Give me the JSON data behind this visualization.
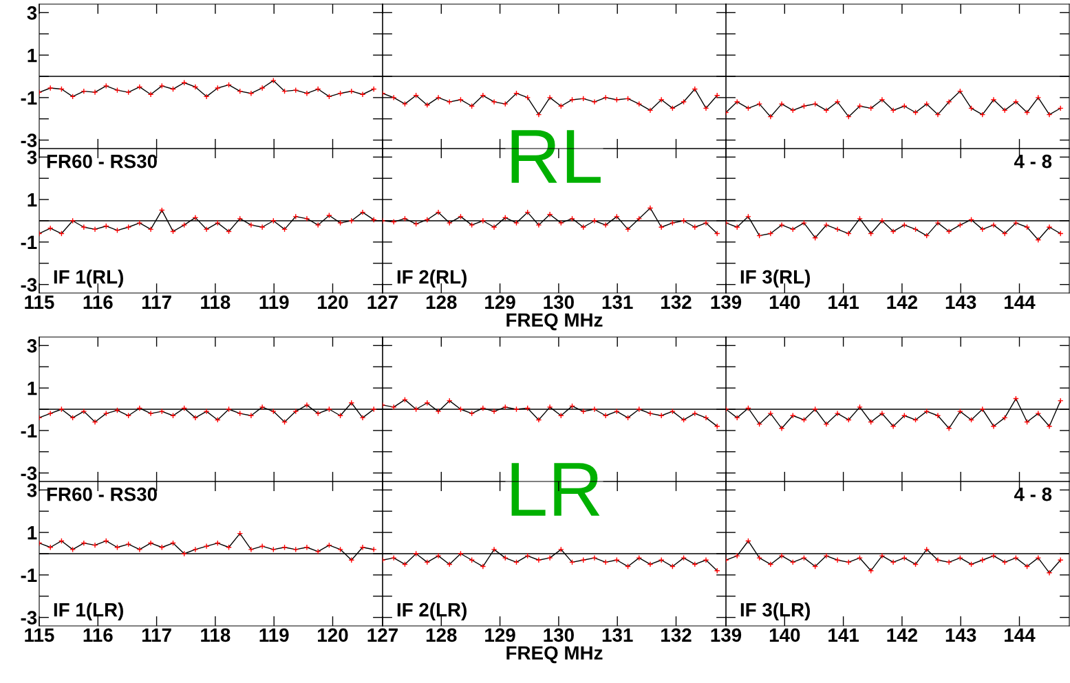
{
  "chart_data": [
    {
      "type": "line",
      "x": [
        115,
        115.19,
        115.38,
        115.57,
        115.76,
        115.95,
        116.14,
        116.33,
        116.52,
        116.71,
        116.9,
        117.09,
        117.28,
        117.47,
        117.66,
        117.85,
        118.04,
        118.23,
        118.42,
        118.61,
        118.8,
        118.99,
        119.18,
        119.37,
        119.56,
        119.75,
        119.94,
        120.13,
        120.32,
        120.51,
        120.7
      ],
      "series": [
        {
          "type": "line",
          "color": "#000000",
          "marker": "none",
          "values": [
            -0.75,
            -0.55,
            -0.6,
            -0.95,
            -0.7,
            -0.75,
            -0.45,
            -0.65,
            -0.75,
            -0.5,
            -0.85,
            -0.45,
            -0.6,
            -0.3,
            -0.5,
            -0.95,
            -0.55,
            -0.4,
            -0.7,
            -0.8,
            -0.55,
            -0.2,
            -0.7,
            -0.65,
            -0.8,
            -0.6,
            -0.95,
            -0.8,
            -0.7,
            -0.85,
            -0.6
          ]
        },
        {
          "type": "scatter",
          "color": "#ff0000",
          "marker": "cross",
          "values": [
            -0.75,
            -0.55,
            -0.6,
            -0.95,
            -0.7,
            -0.75,
            -0.45,
            -0.65,
            -0.75,
            -0.5,
            -0.85,
            -0.45,
            -0.6,
            -0.3,
            -0.5,
            -0.95,
            -0.55,
            -0.4,
            -0.7,
            -0.8,
            -0.55,
            -0.2,
            -0.7,
            -0.65,
            -0.8,
            -0.6,
            -0.95,
            -0.8,
            -0.7,
            -0.85,
            -0.6
          ]
        }
      ],
      "xlim": [
        115,
        120.85
      ],
      "xticks": [
        115,
        116,
        117,
        118,
        119,
        120
      ],
      "ylim": [
        -3.4,
        3.4
      ],
      "yticks": [
        -3,
        {
          "value": -2,
          "label": null
        },
        -1,
        {
          "value": 0,
          "label": null
        },
        1,
        {
          "value": 2,
          "label": null
        },
        3
      ],
      "ref_lines": [
        {
          "axis": "y",
          "value": 0,
          "color": "#000000"
        }
      ],
      "tick_labels": "y"
    },
    {
      "type": "line",
      "x": [
        127,
        127.19,
        127.38,
        127.57,
        127.76,
        127.95,
        128.14,
        128.33,
        128.52,
        128.71,
        128.9,
        129.09,
        129.28,
        129.47,
        129.66,
        129.85,
        130.04,
        130.23,
        130.42,
        130.61,
        130.8,
        130.99,
        131.18,
        131.37,
        131.56,
        131.75,
        131.94,
        132.13,
        132.32,
        132.51,
        132.7
      ],
      "series": [
        {
          "type": "line",
          "color": "#000000",
          "marker": "none",
          "values": [
            -0.8,
            -1.0,
            -1.3,
            -0.9,
            -1.35,
            -1.0,
            -1.2,
            -1.1,
            -1.4,
            -0.9,
            -1.2,
            -1.3,
            -0.8,
            -1.0,
            -1.8,
            -1.0,
            -1.4,
            -1.1,
            -1.05,
            -1.2,
            -1.0,
            -1.1,
            -1.05,
            -1.3,
            -1.6,
            -1.1,
            -1.5,
            -1.2,
            -0.6,
            -1.5,
            -0.9
          ]
        },
        {
          "type": "scatter",
          "color": "#ff0000",
          "marker": "cross",
          "values": [
            -0.8,
            -1.0,
            -1.3,
            -0.9,
            -1.35,
            -1.0,
            -1.2,
            -1.1,
            -1.4,
            -0.9,
            -1.2,
            -1.3,
            -0.8,
            -1.0,
            -1.8,
            -1.0,
            -1.4,
            -1.1,
            -1.05,
            -1.2,
            -1.0,
            -1.1,
            -1.05,
            -1.3,
            -1.6,
            -1.1,
            -1.5,
            -1.2,
            -0.6,
            -1.5,
            -0.9
          ]
        }
      ],
      "xlim": [
        127,
        132.85
      ],
      "xticks": [
        127,
        128,
        129,
        130,
        131,
        132
      ],
      "ylim": [
        -3.4,
        3.4
      ],
      "yticks": [
        -3,
        {
          "value": -2,
          "label": null
        },
        -1,
        {
          "value": 0,
          "label": null
        },
        1,
        {
          "value": 2,
          "label": null
        },
        3
      ],
      "ref_lines": [
        {
          "axis": "y",
          "value": 0,
          "color": "#000000"
        }
      ],
      "tick_labels": false,
      "annotations": [
        "RL"
      ]
    },
    {
      "type": "line",
      "x": [
        139,
        139.19,
        139.38,
        139.57,
        139.76,
        139.95,
        140.14,
        140.33,
        140.52,
        140.71,
        140.9,
        141.09,
        141.28,
        141.47,
        141.66,
        141.85,
        142.04,
        142.23,
        142.42,
        142.61,
        142.8,
        142.99,
        143.18,
        143.37,
        143.56,
        143.75,
        143.94,
        144.13,
        144.32,
        144.51,
        144.7
      ],
      "series": [
        {
          "type": "line",
          "color": "#000000",
          "marker": "none",
          "values": [
            -1.7,
            -1.2,
            -1.5,
            -1.3,
            -1.9,
            -1.3,
            -1.6,
            -1.4,
            -1.3,
            -1.6,
            -1.2,
            -1.9,
            -1.4,
            -1.5,
            -1.1,
            -1.6,
            -1.4,
            -1.7,
            -1.3,
            -1.8,
            -1.2,
            -0.7,
            -1.5,
            -1.8,
            -1.1,
            -1.6,
            -1.2,
            -1.7,
            -1.0,
            -1.8,
            -1.5
          ]
        },
        {
          "type": "scatter",
          "color": "#ff0000",
          "marker": "cross",
          "values": [
            -1.7,
            -1.2,
            -1.5,
            -1.3,
            -1.9,
            -1.3,
            -1.6,
            -1.4,
            -1.3,
            -1.6,
            -1.2,
            -1.9,
            -1.4,
            -1.5,
            -1.1,
            -1.6,
            -1.4,
            -1.7,
            -1.3,
            -1.8,
            -1.2,
            -0.7,
            -1.5,
            -1.8,
            -1.1,
            -1.6,
            -1.2,
            -1.7,
            -1.0,
            -1.8,
            -1.5
          ]
        }
      ],
      "xlim": [
        139,
        144.85
      ],
      "xticks": [
        139,
        140,
        141,
        142,
        143,
        144
      ],
      "ylim": [
        -3.4,
        3.4
      ],
      "yticks": [
        -3,
        {
          "value": -2,
          "label": null
        },
        -1,
        {
          "value": 0,
          "label": null
        },
        1,
        {
          "value": 2,
          "label": null
        },
        3
      ],
      "ref_lines": [
        {
          "axis": "y",
          "value": 0,
          "color": "#000000"
        }
      ],
      "tick_labels": false
    },
    {
      "type": "line",
      "x": [
        115,
        115.19,
        115.38,
        115.57,
        115.76,
        115.95,
        116.14,
        116.33,
        116.52,
        116.71,
        116.9,
        117.09,
        117.28,
        117.47,
        117.66,
        117.85,
        118.04,
        118.23,
        118.42,
        118.61,
        118.8,
        118.99,
        119.18,
        119.37,
        119.56,
        119.75,
        119.94,
        120.13,
        120.32,
        120.51,
        120.7
      ],
      "series": [
        {
          "type": "line",
          "color": "#000000",
          "marker": "none",
          "values": [
            -0.6,
            -0.35,
            -0.6,
            0.0,
            -0.3,
            -0.4,
            -0.25,
            -0.45,
            -0.3,
            -0.1,
            -0.4,
            0.5,
            -0.5,
            -0.2,
            0.15,
            -0.4,
            -0.1,
            -0.5,
            0.1,
            -0.2,
            -0.3,
            0.0,
            -0.4,
            0.2,
            0.1,
            -0.2,
            0.25,
            -0.1,
            0.0,
            0.4,
            0.05
          ]
        },
        {
          "type": "scatter",
          "color": "#ff0000",
          "marker": "cross",
          "values": [
            -0.6,
            -0.35,
            -0.6,
            0.0,
            -0.3,
            -0.4,
            -0.25,
            -0.45,
            -0.3,
            -0.1,
            -0.4,
            0.5,
            -0.5,
            -0.2,
            0.15,
            -0.4,
            -0.1,
            -0.5,
            0.1,
            -0.2,
            -0.3,
            0.0,
            -0.4,
            0.2,
            0.1,
            -0.2,
            0.25,
            -0.1,
            0.0,
            0.4,
            0.05
          ]
        }
      ],
      "xlim": [
        115,
        120.85
      ],
      "xticks": [
        115,
        116,
        117,
        118,
        119,
        120
      ],
      "ylim": [
        -3.4,
        3.4
      ],
      "yticks": [
        -3,
        {
          "value": -2,
          "label": null
        },
        -1,
        {
          "value": 0,
          "label": null
        },
        1,
        {
          "value": 2,
          "label": null
        },
        3
      ],
      "ref_lines": [
        {
          "axis": "y",
          "value": 0,
          "color": "#000000"
        }
      ],
      "annotations": [
        "FR60 - RS30",
        "IF 1(RL)"
      ]
    },
    {
      "type": "line",
      "x": [
        127,
        127.19,
        127.38,
        127.57,
        127.76,
        127.95,
        128.14,
        128.33,
        128.52,
        128.71,
        128.9,
        129.09,
        129.28,
        129.47,
        129.66,
        129.85,
        130.04,
        130.23,
        130.42,
        130.61,
        130.8,
        130.99,
        131.18,
        131.37,
        131.56,
        131.75,
        131.94,
        132.13,
        132.32,
        132.51,
        132.7
      ],
      "series": [
        {
          "type": "line",
          "color": "#000000",
          "marker": "none",
          "values": [
            0.0,
            -0.05,
            0.1,
            -0.15,
            0.05,
            0.4,
            -0.1,
            0.2,
            -0.2,
            0.0,
            -0.3,
            0.15,
            -0.1,
            0.4,
            -0.2,
            0.3,
            -0.1,
            0.1,
            -0.3,
            0.0,
            -0.2,
            0.2,
            -0.4,
            0.1,
            0.6,
            -0.3,
            -0.1,
            0.0,
            -0.3,
            -0.1,
            -0.6
          ]
        },
        {
          "type": "scatter",
          "color": "#ff0000",
          "marker": "cross",
          "values": [
            0.0,
            -0.05,
            0.1,
            -0.15,
            0.05,
            0.4,
            -0.1,
            0.2,
            -0.2,
            0.0,
            -0.3,
            0.15,
            -0.1,
            0.4,
            -0.2,
            0.3,
            -0.1,
            0.1,
            -0.3,
            0.0,
            -0.2,
            0.2,
            -0.4,
            0.1,
            0.6,
            -0.3,
            -0.1,
            0.0,
            -0.3,
            -0.1,
            -0.6
          ]
        }
      ],
      "xlim": [
        127,
        132.85
      ],
      "xticks": [
        127,
        128,
        129,
        130,
        131,
        132
      ],
      "ylim": [
        -3.4,
        3.4
      ],
      "yticks": [
        -3,
        {
          "value": -2,
          "label": null
        },
        -1,
        {
          "value": 0,
          "label": null
        },
        1,
        {
          "value": 2,
          "label": null
        },
        3
      ],
      "ref_lines": [
        {
          "axis": "y",
          "value": 0,
          "color": "#000000"
        }
      ],
      "tick_labels": "x",
      "xlabel": "FREQ MHz",
      "annotations": [
        "IF 2(RL)"
      ]
    },
    {
      "type": "line",
      "x": [
        139,
        139.19,
        139.38,
        139.57,
        139.76,
        139.95,
        140.14,
        140.33,
        140.52,
        140.71,
        140.9,
        141.09,
        141.28,
        141.47,
        141.66,
        141.85,
        142.04,
        142.23,
        142.42,
        142.61,
        142.8,
        142.99,
        143.18,
        143.37,
        143.56,
        143.75,
        143.94,
        144.13,
        144.32,
        144.51,
        144.7
      ],
      "series": [
        {
          "type": "line",
          "color": "#000000",
          "marker": "none",
          "values": [
            -0.1,
            -0.3,
            0.2,
            -0.7,
            -0.6,
            -0.2,
            -0.4,
            -0.1,
            -0.8,
            -0.2,
            -0.4,
            -0.6,
            0.1,
            -0.6,
            0.0,
            -0.5,
            -0.2,
            -0.4,
            -0.7,
            -0.1,
            -0.5,
            -0.2,
            0.05,
            -0.4,
            -0.2,
            -0.6,
            -0.1,
            -0.3,
            -0.9,
            -0.3,
            -0.6
          ]
        },
        {
          "type": "scatter",
          "color": "#ff0000",
          "marker": "cross",
          "values": [
            -0.1,
            -0.3,
            0.2,
            -0.7,
            -0.6,
            -0.2,
            -0.4,
            -0.1,
            -0.8,
            -0.2,
            -0.4,
            -0.6,
            0.1,
            -0.6,
            0.0,
            -0.5,
            -0.2,
            -0.4,
            -0.7,
            -0.1,
            -0.5,
            -0.2,
            0.05,
            -0.4,
            -0.2,
            -0.6,
            -0.1,
            -0.3,
            -0.9,
            -0.3,
            -0.6
          ]
        }
      ],
      "xlim": [
        139,
        144.85
      ],
      "xticks": [
        139,
        140,
        141,
        142,
        143,
        144
      ],
      "ylim": [
        -3.4,
        3.4
      ],
      "yticks": [
        -3,
        {
          "value": -2,
          "label": null
        },
        -1,
        {
          "value": 0,
          "label": null
        },
        1,
        {
          "value": 2,
          "label": null
        },
        3
      ],
      "ref_lines": [
        {
          "axis": "y",
          "value": 0,
          "color": "#000000"
        }
      ],
      "tick_labels": "x",
      "annotations": [
        "4 - 8",
        "IF 3(RL)"
      ]
    },
    {
      "type": "line",
      "x": [
        115,
        115.19,
        115.38,
        115.57,
        115.76,
        115.95,
        116.14,
        116.33,
        116.52,
        116.71,
        116.9,
        117.09,
        117.28,
        117.47,
        117.66,
        117.85,
        118.04,
        118.23,
        118.42,
        118.61,
        118.8,
        118.99,
        119.18,
        119.37,
        119.56,
        119.75,
        119.94,
        120.13,
        120.32,
        120.51,
        120.7
      ],
      "series": [
        {
          "type": "line",
          "color": "#000000",
          "marker": "none",
          "values": [
            -0.4,
            -0.2,
            0.0,
            -0.4,
            -0.1,
            -0.6,
            -0.2,
            -0.05,
            -0.3,
            0.05,
            -0.2,
            -0.1,
            -0.3,
            0.05,
            -0.4,
            -0.1,
            -0.5,
            0.0,
            -0.2,
            -0.3,
            0.1,
            -0.1,
            -0.6,
            -0.1,
            0.2,
            -0.2,
            0.0,
            -0.3,
            0.3,
            -0.4,
            0.0
          ]
        },
        {
          "type": "scatter",
          "color": "#ff0000",
          "marker": "cross",
          "values": [
            -0.4,
            -0.2,
            0.0,
            -0.4,
            -0.1,
            -0.6,
            -0.2,
            -0.05,
            -0.3,
            0.05,
            -0.2,
            -0.1,
            -0.3,
            0.05,
            -0.4,
            -0.1,
            -0.5,
            0.0,
            -0.2,
            -0.3,
            0.1,
            -0.1,
            -0.6,
            -0.1,
            0.2,
            -0.2,
            0.0,
            -0.3,
            0.3,
            -0.4,
            0.0
          ]
        }
      ],
      "xlim": [
        115,
        120.85
      ],
      "xticks": [
        115,
        116,
        117,
        118,
        119,
        120
      ],
      "ylim": [
        -3.4,
        3.4
      ],
      "yticks": [
        -3,
        {
          "value": -2,
          "label": null
        },
        -1,
        {
          "value": 0,
          "label": null
        },
        1,
        {
          "value": 2,
          "label": null
        },
        3
      ],
      "ref_lines": [
        {
          "axis": "y",
          "value": 0,
          "color": "#000000"
        }
      ],
      "tick_labels": "y"
    },
    {
      "type": "line",
      "x": [
        127,
        127.19,
        127.38,
        127.57,
        127.76,
        127.95,
        128.14,
        128.33,
        128.52,
        128.71,
        128.9,
        129.09,
        129.28,
        129.47,
        129.66,
        129.85,
        130.04,
        130.23,
        130.42,
        130.61,
        130.8,
        130.99,
        131.18,
        131.37,
        131.56,
        131.75,
        131.94,
        132.13,
        132.32,
        132.51,
        132.7
      ],
      "series": [
        {
          "type": "line",
          "color": "#000000",
          "marker": "none",
          "values": [
            0.2,
            0.1,
            0.45,
            0.0,
            0.3,
            -0.1,
            0.4,
            0.0,
            -0.2,
            0.05,
            -0.1,
            0.1,
            0.0,
            0.05,
            -0.5,
            0.1,
            -0.3,
            0.15,
            -0.1,
            0.0,
            -0.3,
            -0.1,
            -0.4,
            0.0,
            -0.2,
            -0.3,
            -0.1,
            -0.5,
            -0.2,
            -0.4,
            -0.8
          ]
        },
        {
          "type": "scatter",
          "color": "#ff0000",
          "marker": "cross",
          "values": [
            0.2,
            0.1,
            0.45,
            0.0,
            0.3,
            -0.1,
            0.4,
            0.0,
            -0.2,
            0.05,
            -0.1,
            0.1,
            0.0,
            0.05,
            -0.5,
            0.1,
            -0.3,
            0.15,
            -0.1,
            0.0,
            -0.3,
            -0.1,
            -0.4,
            0.0,
            -0.2,
            -0.3,
            -0.1,
            -0.5,
            -0.2,
            -0.4,
            -0.8
          ]
        }
      ],
      "xlim": [
        127,
        132.85
      ],
      "xticks": [
        127,
        128,
        129,
        130,
        131,
        132
      ],
      "ylim": [
        -3.4,
        3.4
      ],
      "yticks": [
        -3,
        {
          "value": -2,
          "label": null
        },
        -1,
        {
          "value": 0,
          "label": null
        },
        1,
        {
          "value": 2,
          "label": null
        },
        3
      ],
      "ref_lines": [
        {
          "axis": "y",
          "value": 0,
          "color": "#000000"
        }
      ],
      "tick_labels": false,
      "annotations": [
        "LR"
      ]
    },
    {
      "type": "line",
      "x": [
        139,
        139.19,
        139.38,
        139.57,
        139.76,
        139.95,
        140.14,
        140.33,
        140.52,
        140.71,
        140.9,
        141.09,
        141.28,
        141.47,
        141.66,
        141.85,
        142.04,
        142.23,
        142.42,
        142.61,
        142.8,
        142.99,
        143.18,
        143.37,
        143.56,
        143.75,
        143.94,
        144.13,
        144.32,
        144.51,
        144.7
      ],
      "series": [
        {
          "type": "line",
          "color": "#000000",
          "marker": "none",
          "values": [
            0.0,
            -0.4,
            0.05,
            -0.7,
            -0.2,
            -0.9,
            -0.3,
            -0.5,
            0.0,
            -0.7,
            -0.2,
            -0.5,
            0.1,
            -0.6,
            -0.2,
            -0.8,
            -0.3,
            -0.5,
            -0.1,
            -0.3,
            -0.9,
            -0.1,
            -0.5,
            0.0,
            -0.8,
            -0.4,
            0.5,
            -0.6,
            -0.2,
            -0.8,
            0.4
          ]
        },
        {
          "type": "scatter",
          "color": "#ff0000",
          "marker": "cross",
          "values": [
            0.0,
            -0.4,
            0.05,
            -0.7,
            -0.2,
            -0.9,
            -0.3,
            -0.5,
            0.0,
            -0.7,
            -0.2,
            -0.5,
            0.1,
            -0.6,
            -0.2,
            -0.8,
            -0.3,
            -0.5,
            -0.1,
            -0.3,
            -0.9,
            -0.1,
            -0.5,
            0.0,
            -0.8,
            -0.4,
            0.5,
            -0.6,
            -0.2,
            -0.8,
            0.4
          ]
        }
      ],
      "xlim": [
        139,
        144.85
      ],
      "xticks": [
        139,
        140,
        141,
        142,
        143,
        144
      ],
      "ylim": [
        -3.4,
        3.4
      ],
      "yticks": [
        -3,
        {
          "value": -2,
          "label": null
        },
        -1,
        {
          "value": 0,
          "label": null
        },
        1,
        {
          "value": 2,
          "label": null
        },
        3
      ],
      "ref_lines": [
        {
          "axis": "y",
          "value": 0,
          "color": "#000000"
        }
      ],
      "tick_labels": false
    },
    {
      "type": "line",
      "x": [
        115,
        115.19,
        115.38,
        115.57,
        115.76,
        115.95,
        116.14,
        116.33,
        116.52,
        116.71,
        116.9,
        117.09,
        117.28,
        117.47,
        117.66,
        117.85,
        118.04,
        118.23,
        118.42,
        118.61,
        118.8,
        118.99,
        119.18,
        119.37,
        119.56,
        119.75,
        119.94,
        120.13,
        120.32,
        120.51,
        120.7
      ],
      "series": [
        {
          "type": "line",
          "color": "#000000",
          "marker": "none",
          "values": [
            0.5,
            0.3,
            0.6,
            0.2,
            0.5,
            0.4,
            0.6,
            0.3,
            0.45,
            0.2,
            0.5,
            0.3,
            0.5,
            0.0,
            0.2,
            0.35,
            0.5,
            0.3,
            0.95,
            0.2,
            0.35,
            0.2,
            0.3,
            0.2,
            0.3,
            0.1,
            0.4,
            0.2,
            -0.3,
            0.3,
            0.2
          ]
        },
        {
          "type": "scatter",
          "color": "#ff0000",
          "marker": "cross",
          "values": [
            0.5,
            0.3,
            0.6,
            0.2,
            0.5,
            0.4,
            0.6,
            0.3,
            0.45,
            0.2,
            0.5,
            0.3,
            0.5,
            0.0,
            0.2,
            0.35,
            0.5,
            0.3,
            0.95,
            0.2,
            0.35,
            0.2,
            0.3,
            0.2,
            0.3,
            0.1,
            0.4,
            0.2,
            -0.3,
            0.3,
            0.2
          ]
        }
      ],
      "xlim": [
        115,
        120.85
      ],
      "xticks": [
        115,
        116,
        117,
        118,
        119,
        120
      ],
      "ylim": [
        -3.4,
        3.4
      ],
      "yticks": [
        -3,
        {
          "value": -2,
          "label": null
        },
        -1,
        {
          "value": 0,
          "label": null
        },
        1,
        {
          "value": 2,
          "label": null
        },
        3
      ],
      "ref_lines": [
        {
          "axis": "y",
          "value": 0,
          "color": "#000000"
        }
      ],
      "annotations": [
        "FR60 - RS30",
        "IF 1(LR)"
      ]
    },
    {
      "type": "line",
      "x": [
        127,
        127.19,
        127.38,
        127.57,
        127.76,
        127.95,
        128.14,
        128.33,
        128.52,
        128.71,
        128.9,
        129.09,
        129.28,
        129.47,
        129.66,
        129.85,
        130.04,
        130.23,
        130.42,
        130.61,
        130.8,
        130.99,
        131.18,
        131.37,
        131.56,
        131.75,
        131.94,
        132.13,
        132.32,
        132.51,
        132.7
      ],
      "series": [
        {
          "type": "line",
          "color": "#000000",
          "marker": "none",
          "values": [
            -0.3,
            -0.2,
            -0.5,
            0.0,
            -0.4,
            -0.1,
            -0.5,
            0.0,
            -0.3,
            -0.6,
            0.2,
            -0.2,
            -0.4,
            -0.1,
            -0.3,
            -0.2,
            0.2,
            -0.4,
            -0.3,
            -0.2,
            -0.4,
            -0.3,
            -0.6,
            -0.2,
            -0.5,
            -0.3,
            -0.6,
            -0.2,
            -0.5,
            -0.3,
            -0.8
          ]
        },
        {
          "type": "scatter",
          "color": "#ff0000",
          "marker": "cross",
          "values": [
            -0.3,
            -0.2,
            -0.5,
            0.0,
            -0.4,
            -0.1,
            -0.5,
            0.0,
            -0.3,
            -0.6,
            0.2,
            -0.2,
            -0.4,
            -0.1,
            -0.3,
            -0.2,
            0.2,
            -0.4,
            -0.3,
            -0.2,
            -0.4,
            -0.3,
            -0.6,
            -0.2,
            -0.5,
            -0.3,
            -0.6,
            -0.2,
            -0.5,
            -0.3,
            -0.8
          ]
        }
      ],
      "xlim": [
        127,
        132.85
      ],
      "xticks": [
        127,
        128,
        129,
        130,
        131,
        132
      ],
      "ylim": [
        -3.4,
        3.4
      ],
      "yticks": [
        -3,
        {
          "value": -2,
          "label": null
        },
        -1,
        {
          "value": 0,
          "label": null
        },
        1,
        {
          "value": 2,
          "label": null
        },
        3
      ],
      "ref_lines": [
        {
          "axis": "y",
          "value": 0,
          "color": "#000000"
        }
      ],
      "tick_labels": "x",
      "xlabel": "FREQ MHz",
      "annotations": [
        "IF 2(LR)"
      ]
    },
    {
      "type": "line",
      "x": [
        139,
        139.19,
        139.38,
        139.57,
        139.76,
        139.95,
        140.14,
        140.33,
        140.52,
        140.71,
        140.9,
        141.09,
        141.28,
        141.47,
        141.66,
        141.85,
        142.04,
        142.23,
        142.42,
        142.61,
        142.8,
        142.99,
        143.18,
        143.37,
        143.56,
        143.75,
        143.94,
        144.13,
        144.32,
        144.51,
        144.7
      ],
      "series": [
        {
          "type": "line",
          "color": "#000000",
          "marker": "none",
          "values": [
            -0.3,
            -0.1,
            0.6,
            -0.2,
            -0.5,
            -0.1,
            -0.4,
            -0.2,
            -0.6,
            -0.1,
            -0.3,
            -0.4,
            -0.2,
            -0.8,
            -0.1,
            -0.4,
            -0.2,
            -0.5,
            0.2,
            -0.3,
            -0.4,
            -0.2,
            -0.5,
            -0.3,
            -0.1,
            -0.4,
            -0.2,
            -0.6,
            -0.2,
            -0.9,
            -0.3
          ]
        },
        {
          "type": "scatter",
          "color": "#ff0000",
          "marker": "cross",
          "values": [
            -0.3,
            -0.1,
            0.6,
            -0.2,
            -0.5,
            -0.1,
            -0.4,
            -0.2,
            -0.6,
            -0.1,
            -0.3,
            -0.4,
            -0.2,
            -0.8,
            -0.1,
            -0.4,
            -0.2,
            -0.5,
            0.2,
            -0.3,
            -0.4,
            -0.2,
            -0.5,
            -0.3,
            -0.1,
            -0.4,
            -0.2,
            -0.6,
            -0.2,
            -0.9,
            -0.3
          ]
        }
      ],
      "xlim": [
        139,
        144.85
      ],
      "xticks": [
        139,
        140,
        141,
        142,
        143,
        144
      ],
      "ylim": [
        -3.4,
        3.4
      ],
      "yticks": [
        -3,
        {
          "value": -2,
          "label": null
        },
        -1,
        {
          "value": 0,
          "label": null
        },
        1,
        {
          "value": 2,
          "label": null
        },
        3
      ],
      "ref_lines": [
        {
          "axis": "y",
          "value": 0,
          "color": "#000000"
        }
      ],
      "tick_labels": "x",
      "annotations": [
        "4 - 8",
        "IF 3(LR)"
      ]
    }
  ]
}
